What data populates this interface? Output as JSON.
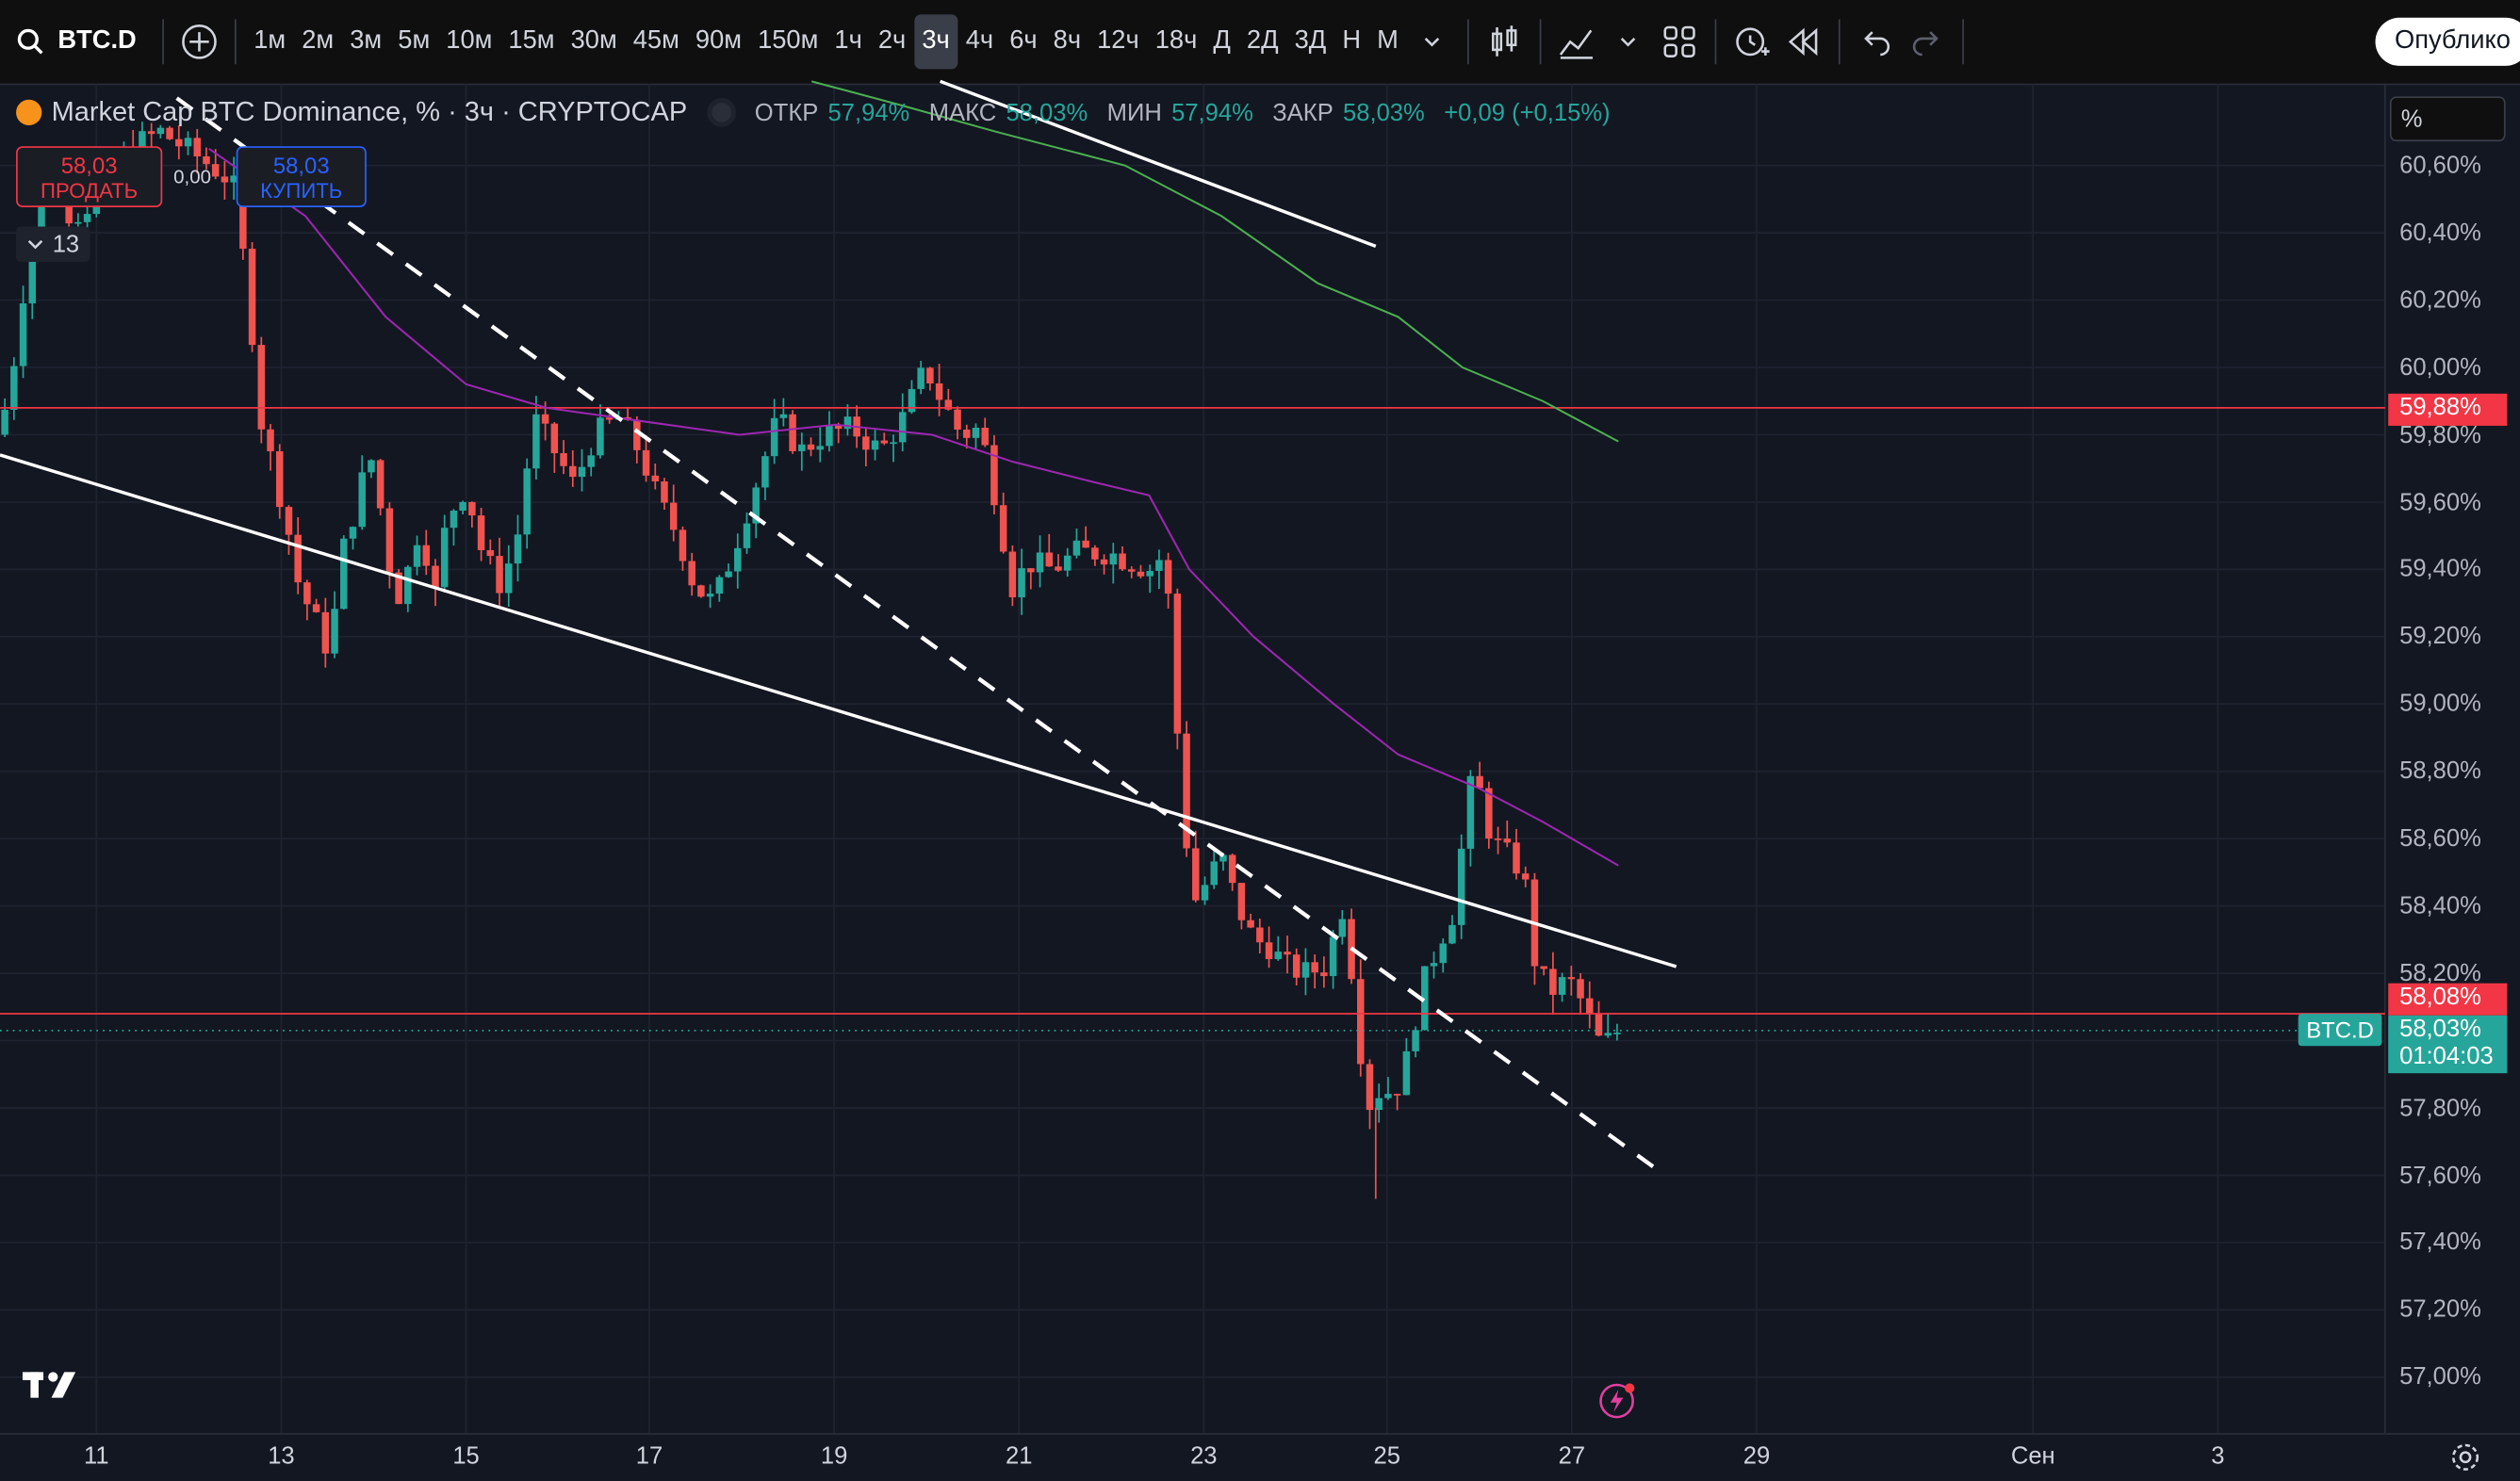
{
  "toolbar": {
    "symbol": "BTC.D",
    "intervals": [
      "1м",
      "2м",
      "3м",
      "5м",
      "10м",
      "15м",
      "30м",
      "45м",
      "90м",
      "150м",
      "1ч",
      "2ч",
      "3ч",
      "4ч",
      "6ч",
      "8ч",
      "12ч",
      "18ч",
      "Д",
      "2Д",
      "3Д",
      "Н",
      "М"
    ],
    "active_interval": "3ч",
    "publish_label": "Опублико"
  },
  "legend": {
    "title": "Market Cap BTC Dominance, % · 3ч · CRYPTOCAP",
    "open_label": "ОТКР",
    "open_value": "57,94%",
    "high_label": "МАКС",
    "high_value": "58,03%",
    "low_label": "МИН",
    "low_value": "57,94%",
    "close_label": "ЗАКР",
    "close_value": "58,03%",
    "change": "+0,09 (+0,15%)"
  },
  "trade": {
    "sell_price": "58,03",
    "sell_label": "ПРОДАТЬ",
    "spread": "0,00",
    "buy_price": "58,03",
    "buy_label": "КУПИТЬ",
    "collapse_count": "13"
  },
  "price_axis": {
    "unit": "%",
    "labels": [
      "60,60%",
      "60,40%",
      "60,20%",
      "60,00%",
      "59,80%",
      "59,60%",
      "59,40%",
      "59,20%",
      "59,00%",
      "58,80%",
      "58,60%",
      "58,40%",
      "58,20%",
      "57,80%",
      "57,60%",
      "57,40%",
      "57,20%",
      "57,00%"
    ],
    "tag_resistance": "59,88%",
    "tag_support": "58,08%",
    "tag_last": "58,03%",
    "tag_countdown": "01:04:03",
    "symbol_tag": "BTC.D"
  },
  "time_axis": {
    "labels": [
      "11",
      "13",
      "15",
      "17",
      "19",
      "21",
      "23",
      "25",
      "27",
      "29",
      "Сен",
      "3"
    ]
  },
  "colors": {
    "up": "#26a69a",
    "down": "#ef5350",
    "ma_fast": "#9c27b0",
    "ma_slow": "#4caf50",
    "hline": "#f23645",
    "trend": "#ffffff"
  },
  "chart_data": {
    "type": "candlestick",
    "interval": "3ч",
    "price_range": [
      56.96,
      60.7
    ],
    "horizontal_levels": [
      59.88,
      58.08
    ],
    "last_price": 58.03,
    "ohlc_last": {
      "open": 57.94,
      "high": 58.03,
      "low": 57.94,
      "close": 58.03
    },
    "x_ticks": [
      "11",
      "13",
      "15",
      "17",
      "19",
      "21",
      "23",
      "25",
      "27",
      "29",
      "Сен",
      "3"
    ],
    "y_ticks": [
      60.6,
      60.4,
      60.2,
      60.0,
      59.8,
      59.6,
      59.4,
      59.2,
      59.0,
      58.8,
      58.6,
      58.4,
      58.2,
      58.0,
      57.8,
      57.6,
      57.4,
      57.2,
      57.0
    ]
  }
}
